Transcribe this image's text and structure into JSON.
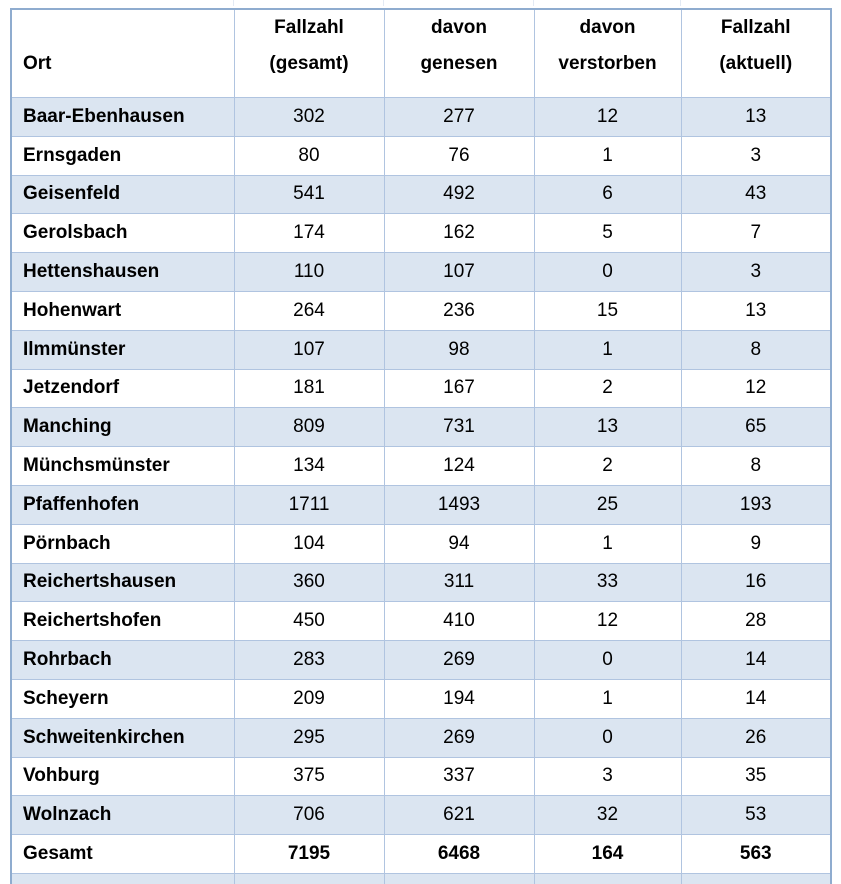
{
  "table": {
    "title_semantic": "COVID-19 Fallzahlen nach Ort",
    "columns": [
      {
        "line1": "",
        "line2": "Ort"
      },
      {
        "line1": "Fallzahl",
        "line2": "(gesamt)"
      },
      {
        "line1": "davon",
        "line2": "genesen"
      },
      {
        "line1": "davon",
        "line2": "verstorben"
      },
      {
        "line1": "Fallzahl",
        "line2": "(aktuell)"
      }
    ],
    "rows": [
      {
        "ort": "Baar-Ebenhausen",
        "gesamt": "302",
        "genesen": "277",
        "verstorben": "12",
        "aktuell": "13"
      },
      {
        "ort": "Ernsgaden",
        "gesamt": "80",
        "genesen": "76",
        "verstorben": "1",
        "aktuell": "3"
      },
      {
        "ort": "Geisenfeld",
        "gesamt": "541",
        "genesen": "492",
        "verstorben": "6",
        "aktuell": "43"
      },
      {
        "ort": "Gerolsbach",
        "gesamt": "174",
        "genesen": "162",
        "verstorben": "5",
        "aktuell": "7"
      },
      {
        "ort": "Hettenshausen",
        "gesamt": "110",
        "genesen": "107",
        "verstorben": "0",
        "aktuell": "3"
      },
      {
        "ort": "Hohenwart",
        "gesamt": "264",
        "genesen": "236",
        "verstorben": "15",
        "aktuell": "13"
      },
      {
        "ort": "Ilmmünster",
        "gesamt": "107",
        "genesen": "98",
        "verstorben": "1",
        "aktuell": "8"
      },
      {
        "ort": "Jetzendorf",
        "gesamt": "181",
        "genesen": "167",
        "verstorben": "2",
        "aktuell": "12"
      },
      {
        "ort": "Manching",
        "gesamt": "809",
        "genesen": "731",
        "verstorben": "13",
        "aktuell": "65"
      },
      {
        "ort": "Münchsmünster",
        "gesamt": "134",
        "genesen": "124",
        "verstorben": "2",
        "aktuell": "8"
      },
      {
        "ort": "Pfaffenhofen",
        "gesamt": "1711",
        "genesen": "1493",
        "verstorben": "25",
        "aktuell": "193"
      },
      {
        "ort": "Pörnbach",
        "gesamt": "104",
        "genesen": "94",
        "verstorben": "1",
        "aktuell": "9"
      },
      {
        "ort": "Reichertshausen",
        "gesamt": "360",
        "genesen": "311",
        "verstorben": "33",
        "aktuell": "16"
      },
      {
        "ort": "Reichertshofen",
        "gesamt": "450",
        "genesen": "410",
        "verstorben": "12",
        "aktuell": "28"
      },
      {
        "ort": "Rohrbach",
        "gesamt": "283",
        "genesen": "269",
        "verstorben": "0",
        "aktuell": "14"
      },
      {
        "ort": "Scheyern",
        "gesamt": "209",
        "genesen": "194",
        "verstorben": "1",
        "aktuell": "14"
      },
      {
        "ort": "Schweitenkirchen",
        "gesamt": "295",
        "genesen": "269",
        "verstorben": "0",
        "aktuell": "26"
      },
      {
        "ort": "Vohburg",
        "gesamt": "375",
        "genesen": "337",
        "verstorben": "3",
        "aktuell": "35"
      },
      {
        "ort": "Wolnzach",
        "gesamt": "706",
        "genesen": "621",
        "verstorben": "32",
        "aktuell": "53"
      }
    ],
    "total_row": {
      "ort": "Gesamt",
      "gesamt": "7195",
      "genesen": "6468",
      "verstorben": "164",
      "aktuell": "563"
    },
    "artifact_ghost_labels": [
      "",
      "Fallzahl",
      "davon",
      "davon",
      "Fallzahl"
    ],
    "colors": {
      "band_fill": "#dbe5f1",
      "border_inner": "#b0c4e0",
      "border_outer": "#8faccf",
      "text": "#000000",
      "header_bg": "#ffffff"
    }
  }
}
